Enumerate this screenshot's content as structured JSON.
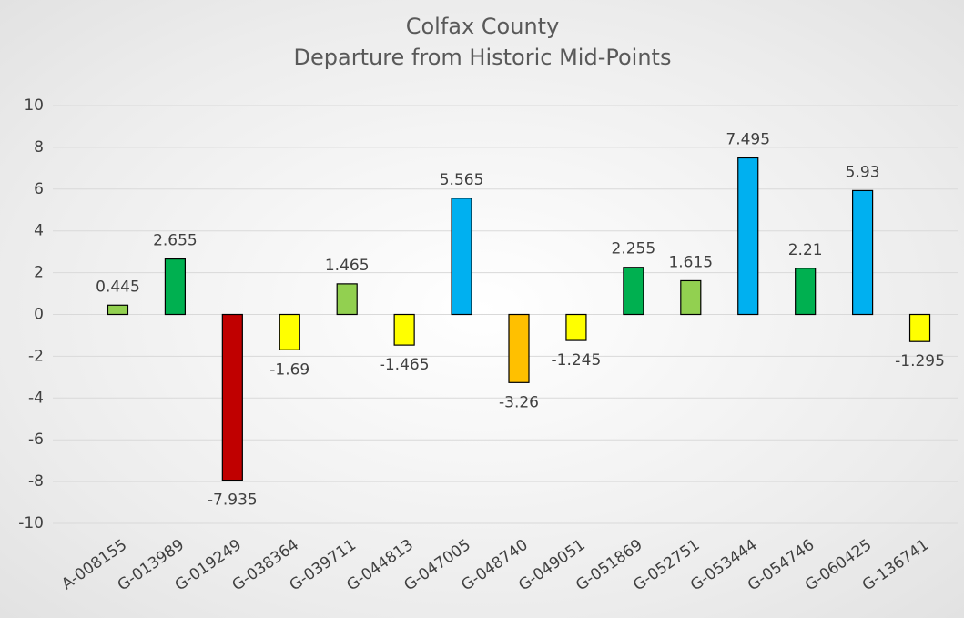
{
  "chart_data": {
    "type": "bar",
    "title": "Colfax County",
    "subtitle": "Departure from Historic Mid-Points",
    "categories": [
      "A-008155",
      "G-013989",
      "G-019249",
      "G-038364",
      "G-039711",
      "G-044813",
      "G-047005",
      "G-048740",
      "G-049051",
      "G-051869",
      "G-052751",
      "G-053444",
      "G-054746",
      "G-060425",
      "G-136741"
    ],
    "values": [
      0.445,
      2.655,
      -7.935,
      -1.69,
      1.465,
      -1.465,
      5.565,
      -3.26,
      -1.245,
      2.255,
      1.615,
      7.495,
      2.21,
      5.93,
      -1.295
    ],
    "colors": [
      "#92d050",
      "#00b050",
      "#c00000",
      "#ffff00",
      "#92d050",
      "#ffff00",
      "#00b0f0",
      "#ffc000",
      "#ffff00",
      "#00b050",
      "#92d050",
      "#00b0f0",
      "#00b050",
      "#00b0f0",
      "#ffff00"
    ],
    "ylim": [
      -10,
      10
    ],
    "yticks": [
      -10,
      -8,
      -6,
      -4,
      -2,
      0,
      2,
      4,
      6,
      8,
      10
    ],
    "grid": true
  }
}
